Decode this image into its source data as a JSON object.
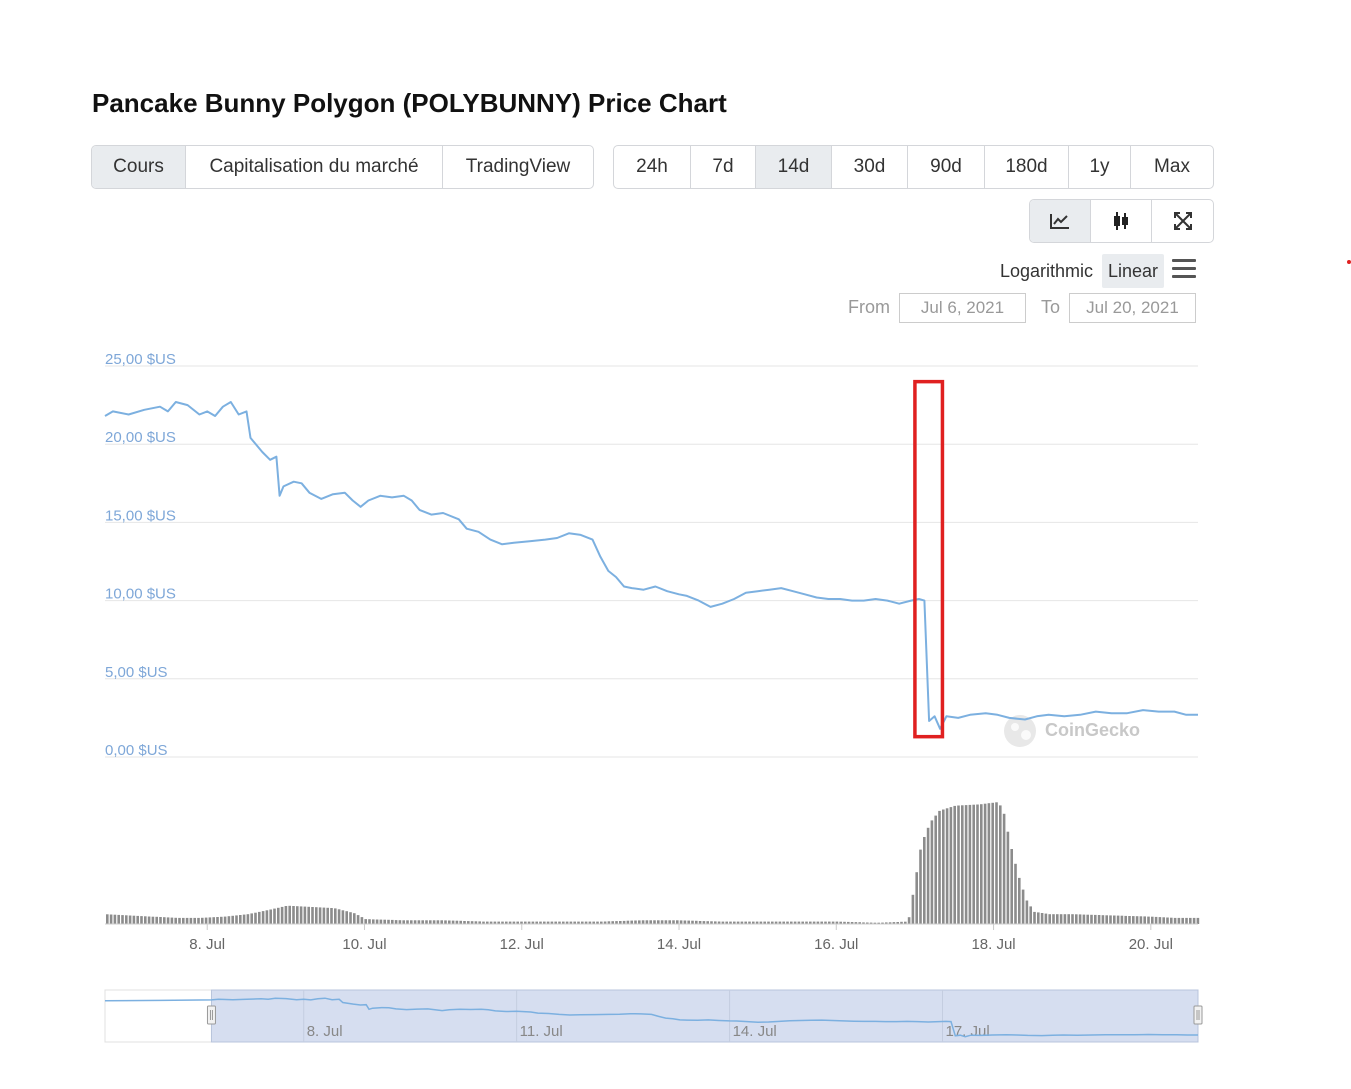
{
  "title": "Pancake Bunny Polygon (POLYBUNNY) Price Chart",
  "chart_types": [
    {
      "label": "Cours",
      "active": true
    },
    {
      "label": "Capitalisation du marché",
      "active": false
    },
    {
      "label": "TradingView",
      "active": false
    }
  ],
  "ranges": [
    {
      "label": "24h",
      "active": false
    },
    {
      "label": "7d",
      "active": false
    },
    {
      "label": "14d",
      "active": true
    },
    {
      "label": "30d",
      "active": false
    },
    {
      "label": "90d",
      "active": false
    },
    {
      "label": "180d",
      "active": false
    },
    {
      "label": "1y",
      "active": false
    },
    {
      "label": "Max",
      "active": false
    }
  ],
  "views": [
    {
      "icon": "line-chart-icon",
      "active": true
    },
    {
      "icon": "candlestick-icon",
      "active": false
    },
    {
      "icon": "expand-icon",
      "active": false
    }
  ],
  "scale": {
    "log_label": "Logarithmic",
    "linear_label": "Linear",
    "selected": "linear"
  },
  "date_range": {
    "from_label": "From",
    "from_value": "Jul 6, 2021",
    "to_label": "To",
    "to_value": "Jul 20, 2021"
  },
  "watermark": "CoinGecko",
  "colors": {
    "price_line": "#7cb0e0",
    "volume_bar": "#8c8c8c",
    "highlight_box": "#e02020",
    "y_tick": "#7ea7d8"
  },
  "chart_data": {
    "type": "line",
    "title": "",
    "xlabel": "",
    "ylabel": "",
    "ylim": [
      0,
      25
    ],
    "y_ticks": [
      "25,00 $US",
      "20,00 $US",
      "15,00 $US",
      "10,00 $US",
      "5,00 $US",
      "0,00 $US"
    ],
    "y_tick_values": [
      25,
      20,
      15,
      10,
      5,
      0
    ],
    "x_ticks": [
      "8. Jul",
      "10. Jul",
      "12. Jul",
      "14. Jul",
      "16. Jul",
      "18. Jul",
      "20. Jul"
    ],
    "x_tick_days": [
      8,
      10,
      12,
      14,
      16,
      18,
      20
    ],
    "x_range_days": [
      6.7,
      20.6
    ],
    "grid": true,
    "legend": "none",
    "series": [
      {
        "values_by_day": [
          [
            6.7,
            21.8
          ],
          [
            6.8,
            22.1
          ],
          [
            7.0,
            21.9
          ],
          [
            7.2,
            22.2
          ],
          [
            7.4,
            22.4
          ],
          [
            7.5,
            22.1
          ],
          [
            7.6,
            22.7
          ],
          [
            7.75,
            22.5
          ],
          [
            7.9,
            21.9
          ],
          [
            8.0,
            22.1
          ],
          [
            8.1,
            21.8
          ],
          [
            8.2,
            22.4
          ],
          [
            8.3,
            22.7
          ],
          [
            8.4,
            21.9
          ],
          [
            8.5,
            22.1
          ],
          [
            8.55,
            20.4
          ],
          [
            8.7,
            19.5
          ],
          [
            8.8,
            19.0
          ],
          [
            8.88,
            19.2
          ],
          [
            8.92,
            16.7
          ],
          [
            8.97,
            17.3
          ],
          [
            9.1,
            17.6
          ],
          [
            9.2,
            17.5
          ],
          [
            9.3,
            16.9
          ],
          [
            9.45,
            16.5
          ],
          [
            9.6,
            16.8
          ],
          [
            9.75,
            16.9
          ],
          [
            9.85,
            16.4
          ],
          [
            9.95,
            16.0
          ],
          [
            10.05,
            16.4
          ],
          [
            10.2,
            16.7
          ],
          [
            10.35,
            16.6
          ],
          [
            10.5,
            16.7
          ],
          [
            10.6,
            16.4
          ],
          [
            10.7,
            15.8
          ],
          [
            10.85,
            15.5
          ],
          [
            11.0,
            15.6
          ],
          [
            11.2,
            15.2
          ],
          [
            11.3,
            14.6
          ],
          [
            11.45,
            14.4
          ],
          [
            11.6,
            13.9
          ],
          [
            11.75,
            13.6
          ],
          [
            11.9,
            13.7
          ],
          [
            12.1,
            13.8
          ],
          [
            12.3,
            13.9
          ],
          [
            12.45,
            14.0
          ],
          [
            12.6,
            14.3
          ],
          [
            12.75,
            14.2
          ],
          [
            12.9,
            13.9
          ],
          [
            13.0,
            12.8
          ],
          [
            13.1,
            11.9
          ],
          [
            13.2,
            11.5
          ],
          [
            13.3,
            10.9
          ],
          [
            13.4,
            10.8
          ],
          [
            13.55,
            10.7
          ],
          [
            13.7,
            10.9
          ],
          [
            13.85,
            10.6
          ],
          [
            14.0,
            10.4
          ],
          [
            14.1,
            10.3
          ],
          [
            14.25,
            10.0
          ],
          [
            14.4,
            9.6
          ],
          [
            14.55,
            9.8
          ],
          [
            14.7,
            10.1
          ],
          [
            14.85,
            10.5
          ],
          [
            15.0,
            10.6
          ],
          [
            15.15,
            10.7
          ],
          [
            15.3,
            10.8
          ],
          [
            15.45,
            10.6
          ],
          [
            15.6,
            10.4
          ],
          [
            15.75,
            10.2
          ],
          [
            15.9,
            10.1
          ],
          [
            16.05,
            10.1
          ],
          [
            16.2,
            10.0
          ],
          [
            16.35,
            10.0
          ],
          [
            16.5,
            10.1
          ],
          [
            16.65,
            10.0
          ],
          [
            16.8,
            9.8
          ],
          [
            16.95,
            10.0
          ],
          [
            17.05,
            10.1
          ],
          [
            17.12,
            10.0
          ],
          [
            17.18,
            2.3
          ],
          [
            17.25,
            2.6
          ],
          [
            17.32,
            1.8
          ],
          [
            17.4,
            2.6
          ],
          [
            17.55,
            2.5
          ],
          [
            17.7,
            2.7
          ],
          [
            17.9,
            2.8
          ],
          [
            18.05,
            2.7
          ],
          [
            18.2,
            2.5
          ],
          [
            18.4,
            2.4
          ],
          [
            18.55,
            2.6
          ],
          [
            18.7,
            2.7
          ],
          [
            18.9,
            2.6
          ],
          [
            19.1,
            2.7
          ],
          [
            19.3,
            2.9
          ],
          [
            19.5,
            2.8
          ],
          [
            19.7,
            2.8
          ],
          [
            19.9,
            3.0
          ],
          [
            20.1,
            2.9
          ],
          [
            20.3,
            2.9
          ],
          [
            20.45,
            2.7
          ],
          [
            20.6,
            2.7
          ]
        ]
      }
    ],
    "volume": {
      "ylim": [
        0,
        1
      ],
      "points": [
        [
          6.7,
          0.08
        ],
        [
          7.0,
          0.07
        ],
        [
          7.3,
          0.06
        ],
        [
          7.6,
          0.05
        ],
        [
          7.9,
          0.05
        ],
        [
          8.2,
          0.06
        ],
        [
          8.5,
          0.08
        ],
        [
          8.8,
          0.12
        ],
        [
          9.0,
          0.15
        ],
        [
          9.3,
          0.14
        ],
        [
          9.6,
          0.13
        ],
        [
          9.85,
          0.09
        ],
        [
          10.0,
          0.04
        ],
        [
          10.5,
          0.03
        ],
        [
          11.0,
          0.03
        ],
        [
          11.5,
          0.02
        ],
        [
          12.0,
          0.02
        ],
        [
          12.5,
          0.02
        ],
        [
          13.0,
          0.02
        ],
        [
          13.5,
          0.03
        ],
        [
          14.0,
          0.03
        ],
        [
          14.5,
          0.02
        ],
        [
          15.0,
          0.02
        ],
        [
          15.5,
          0.02
        ],
        [
          16.0,
          0.02
        ],
        [
          16.5,
          0.01
        ],
        [
          16.9,
          0.02
        ],
        [
          17.0,
          0.4
        ],
        [
          17.05,
          0.6
        ],
        [
          17.12,
          0.75
        ],
        [
          17.2,
          0.85
        ],
        [
          17.3,
          0.93
        ],
        [
          17.5,
          0.97
        ],
        [
          17.8,
          0.98
        ],
        [
          18.05,
          1.0
        ],
        [
          18.12,
          0.9
        ],
        [
          18.2,
          0.65
        ],
        [
          18.3,
          0.4
        ],
        [
          18.4,
          0.2
        ],
        [
          18.5,
          0.1
        ],
        [
          18.7,
          0.08
        ],
        [
          19.0,
          0.08
        ],
        [
          19.5,
          0.07
        ],
        [
          20.0,
          0.06
        ],
        [
          20.3,
          0.05
        ],
        [
          20.6,
          0.05
        ]
      ]
    },
    "navigator": {
      "x_ticks": [
        "8. Jul",
        "11. Jul",
        "14. Jul",
        "17. Jul"
      ],
      "x_tick_days": [
        8,
        11,
        14,
        17
      ],
      "x_range_days": [
        5.2,
        20.6
      ],
      "selection_days": [
        6.7,
        20.6
      ]
    },
    "annotation": {
      "type": "highlight-box",
      "x_days": [
        17.0,
        17.35
      ],
      "y_range": [
        1.3,
        24.0
      ]
    }
  }
}
